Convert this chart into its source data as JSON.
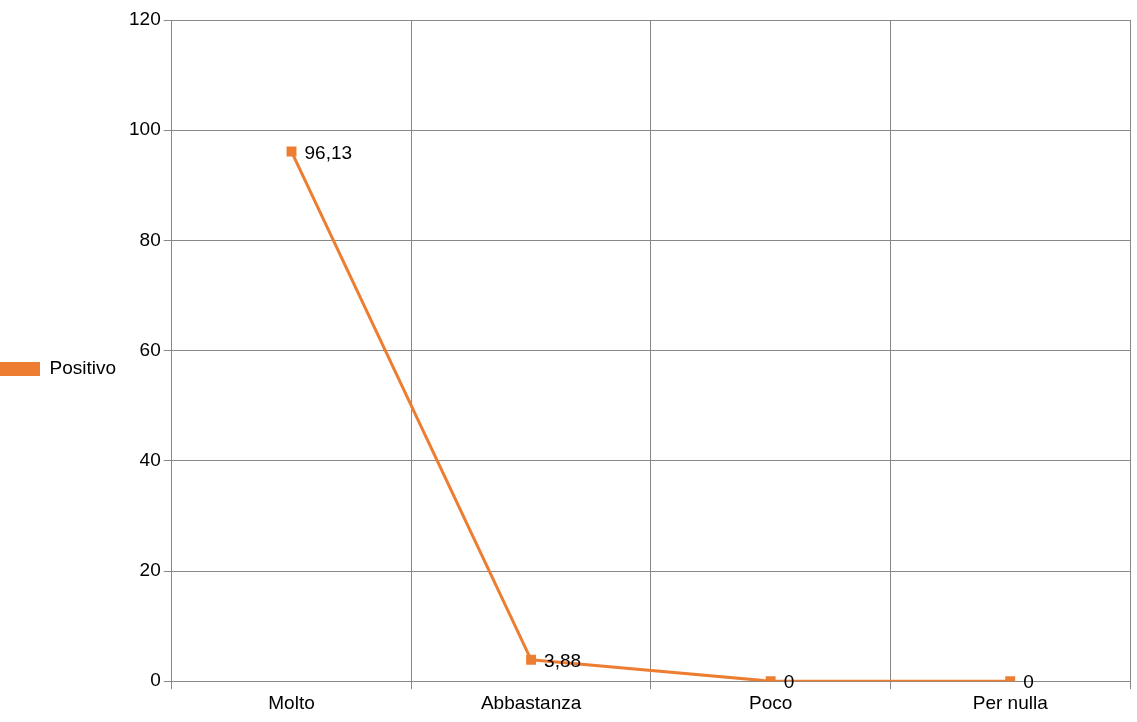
{
  "chart_data": {
    "type": "line",
    "categories": [
      "Molto",
      "Abbastanza",
      "Poco",
      "Per nulla"
    ],
    "series": [
      {
        "name": "Positivo",
        "color": "#ed7d31",
        "values": [
          96.13,
          3.88,
          0,
          0
        ],
        "value_labels": [
          "96,13",
          "3,88",
          "0",
          "0"
        ]
      }
    ],
    "ylim": [
      0,
      120
    ],
    "yticks": [
      0,
      20,
      40,
      60,
      80,
      100,
      120
    ],
    "grid": true,
    "legend": "left",
    "marker": "square",
    "line_style": "solid"
  }
}
